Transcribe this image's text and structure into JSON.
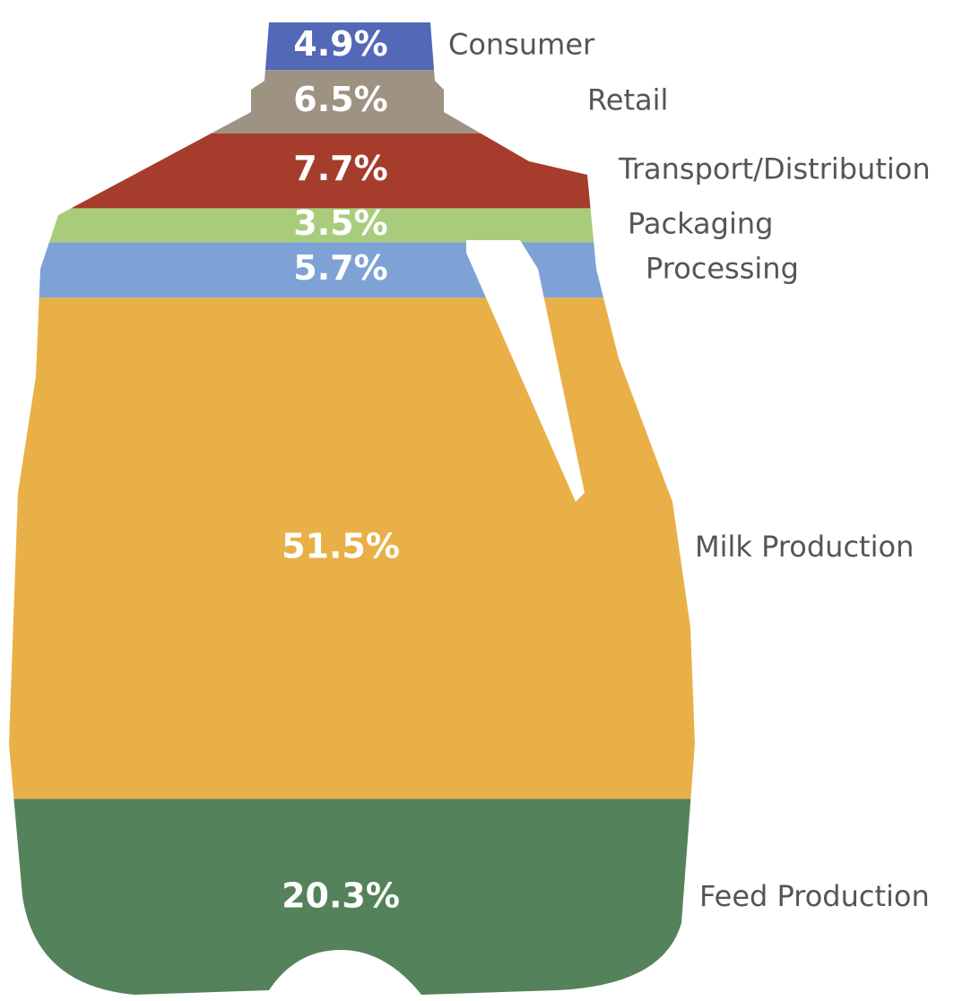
{
  "chart_data": {
    "type": "jug",
    "categories": [
      "Consumer",
      "Retail",
      "Transport/Distribution",
      "Packaging",
      "Processing",
      "Milk Production",
      "Feed Production"
    ],
    "values": [
      4.9,
      6.5,
      7.7,
      3.5,
      5.7,
      51.5,
      20.3
    ],
    "value_labels": [
      "4.9%",
      "6.5%",
      "7.7%",
      "3.5%",
      "5.7%",
      "51.5%",
      "20.3%"
    ],
    "colors": [
      "#5468b8",
      "#9e9282",
      "#a53c2c",
      "#a8cc7c",
      "#7ea2d6",
      "#e9b047",
      "#54825a"
    ]
  }
}
